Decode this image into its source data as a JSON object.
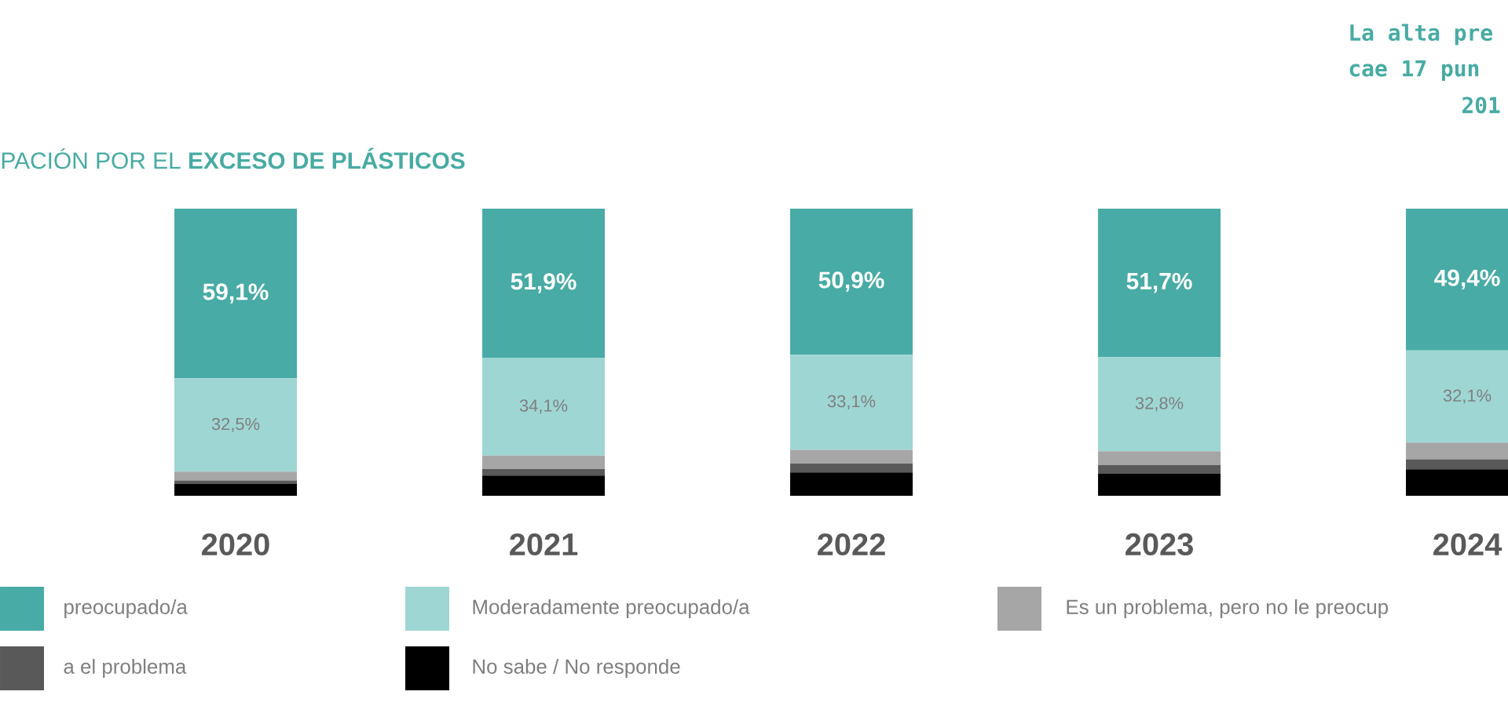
{
  "chart_data": {
    "type": "bar",
    "stacked": true,
    "title": "PACIÓN POR EL **EXCESO DE PLÁSTICOS**",
    "annotations": [
      "La alta pre",
      "cae 17 pun",
      "201"
    ],
    "categories": [
      "2020",
      "2021",
      "2022",
      "2023",
      "2024"
    ],
    "series": [
      {
        "name": "No sabe / No responde",
        "color": "#000000",
        "values": [
          4.2,
          7.0,
          8.1,
          7.8,
          9.2
        ]
      },
      {
        "name": "a el problema",
        "color": "#595959",
        "values": [
          1.1,
          2.3,
          3.1,
          2.9,
          3.5
        ]
      },
      {
        "name": "Es un problema, pero no le preocup",
        "color": "#a6a6a6",
        "values": [
          3.1,
          4.7,
          4.8,
          4.8,
          5.8
        ]
      },
      {
        "name": "Moderadamente preocupado/a",
        "color": "#9ed6d4",
        "values": [
          32.5,
          34.1,
          33.1,
          32.8,
          32.1
        ],
        "value_labels": [
          "32,5%",
          "34,1%",
          "33,1%",
          "32,8%",
          "32,1%"
        ]
      },
      {
        "name": "preocupado/a",
        "color": "#48aba5",
        "values": [
          59.1,
          51.9,
          50.9,
          51.7,
          49.4
        ],
        "value_labels": [
          "59,1%",
          "51,9%",
          "50,9%",
          "51,7%",
          "49,4%"
        ]
      }
    ],
    "legend": "bottom"
  }
}
